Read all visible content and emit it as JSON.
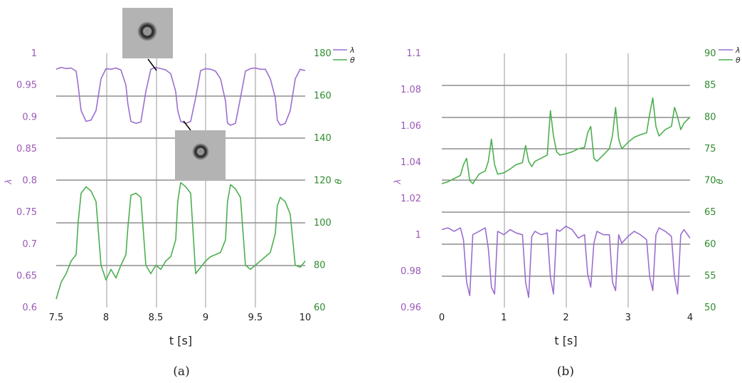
{
  "colors": {
    "lambda": "#9b6fcf",
    "theta": "#4caf50",
    "lambda_text": "#9b59b6",
    "theta_text": "#2e8b2e",
    "grid": "#555555"
  },
  "panels": [
    {
      "caption": "(a)",
      "xlabel": "t [s]",
      "ylabel_left": "λ",
      "ylabel_right": "θ",
      "legend": [
        "λ",
        "θ"
      ],
      "xticks": [
        "7.5",
        "8",
        "8.5",
        "9",
        "9.5",
        "10"
      ],
      "yticks_left": [
        "1",
        "0.95",
        "0.9",
        "0.85",
        "0.8",
        "0.75",
        "0.7",
        "0.65",
        "0.6"
      ],
      "yticks_right": [
        "180",
        "160",
        "140",
        "120",
        "100",
        "80",
        "60"
      ],
      "insets": [
        "droplet-image-large",
        "droplet-image-small"
      ]
    },
    {
      "caption": "(b)",
      "xlabel": "t [s]",
      "ylabel_left": "λ",
      "ylabel_right": "θ",
      "legend": [
        "λ",
        "θ"
      ],
      "xticks": [
        "0",
        "1",
        "2",
        "3",
        "4"
      ],
      "yticks_left": [
        "1.1",
        "1.08",
        "1.06",
        "1.04",
        "1.02",
        "1",
        "0.98",
        "0.96"
      ],
      "yticks_right": [
        "90",
        "85",
        "80",
        "75",
        "70",
        "65",
        "60",
        "55",
        "50"
      ]
    }
  ],
  "chart_data": [
    {
      "type": "line",
      "x_name": "t [s]",
      "xlim": [
        7.5,
        10
      ],
      "ylim_left": [
        0.6,
        1.0
      ],
      "ylim_right": [
        60,
        180
      ],
      "series": [
        {
          "name": "λ",
          "axis": "left",
          "x": [
            7.5,
            7.55,
            7.6,
            7.65,
            7.7,
            7.72,
            7.75,
            7.8,
            7.85,
            7.9,
            7.95,
            8.0,
            8.05,
            8.1,
            8.15,
            8.2,
            8.22,
            8.25,
            8.3,
            8.35,
            8.4,
            8.45,
            8.5,
            8.55,
            8.6,
            8.65,
            8.7,
            8.72,
            8.75,
            8.8,
            8.85,
            8.9,
            8.95,
            9.0,
            9.05,
            9.1,
            9.15,
            9.2,
            9.22,
            9.25,
            9.3,
            9.35,
            9.4,
            9.45,
            9.5,
            9.55,
            9.6,
            9.65,
            9.7,
            9.72,
            9.75,
            9.8,
            9.85,
            9.9,
            9.95,
            10.0
          ],
          "y": [
            0.975,
            0.978,
            0.976,
            0.977,
            0.972,
            0.95,
            0.91,
            0.893,
            0.895,
            0.91,
            0.96,
            0.976,
            0.975,
            0.977,
            0.974,
            0.95,
            0.92,
            0.893,
            0.89,
            0.892,
            0.94,
            0.975,
            0.978,
            0.976,
            0.974,
            0.968,
            0.94,
            0.91,
            0.893,
            0.89,
            0.893,
            0.93,
            0.973,
            0.976,
            0.975,
            0.972,
            0.96,
            0.925,
            0.89,
            0.887,
            0.89,
            0.93,
            0.972,
            0.976,
            0.977,
            0.975,
            0.975,
            0.96,
            0.93,
            0.895,
            0.887,
            0.89,
            0.91,
            0.96,
            0.975,
            0.973
          ]
        },
        {
          "name": "θ",
          "axis": "right",
          "x": [
            7.5,
            7.55,
            7.6,
            7.65,
            7.7,
            7.72,
            7.75,
            7.8,
            7.85,
            7.9,
            7.95,
            8.0,
            8.05,
            8.1,
            8.15,
            8.2,
            8.22,
            8.25,
            8.3,
            8.35,
            8.4,
            8.45,
            8.5,
            8.55,
            8.6,
            8.65,
            8.7,
            8.72,
            8.75,
            8.8,
            8.85,
            8.9,
            8.95,
            9.0,
            9.05,
            9.1,
            9.15,
            9.2,
            9.22,
            9.25,
            9.3,
            9.35,
            9.4,
            9.45,
            9.5,
            9.55,
            9.6,
            9.65,
            9.7,
            9.72,
            9.75,
            9.8,
            9.85,
            9.9,
            9.95,
            10.0
          ],
          "y": [
            64,
            72,
            76,
            82,
            85,
            100,
            114,
            117,
            115,
            110,
            80,
            73,
            78,
            74,
            80,
            85,
            98,
            113,
            114,
            112,
            80,
            76,
            80,
            78,
            82,
            84,
            92,
            110,
            119,
            117,
            114,
            76,
            79,
            82,
            84,
            85,
            86,
            92,
            110,
            118,
            116,
            112,
            80,
            78,
            80,
            82,
            84,
            86,
            95,
            108,
            112,
            110,
            104,
            80,
            79,
            82
          ]
        }
      ]
    },
    {
      "type": "line",
      "x_name": "t [s]",
      "xlim": [
        0,
        4
      ],
      "ylim_left": [
        0.95,
        1.1
      ],
      "ylim_right": [
        50,
        90
      ],
      "series": [
        {
          "name": "λ",
          "axis": "left",
          "x": [
            0,
            0.1,
            0.2,
            0.3,
            0.35,
            0.4,
            0.45,
            0.5,
            0.6,
            0.7,
            0.75,
            0.8,
            0.85,
            0.9,
            1.0,
            1.1,
            1.2,
            1.3,
            1.35,
            1.4,
            1.45,
            1.5,
            1.6,
            1.7,
            1.75,
            1.8,
            1.85,
            1.9,
            2.0,
            2.1,
            2.2,
            2.3,
            2.35,
            2.4,
            2.45,
            2.5,
            2.6,
            2.7,
            2.75,
            2.8,
            2.85,
            2.9,
            3.0,
            3.1,
            3.2,
            3.3,
            3.35,
            3.4,
            3.45,
            3.5,
            3.6,
            3.7,
            3.75,
            3.8,
            3.85,
            3.9,
            4.0
          ],
          "y": [
            0.996,
            0.997,
            0.995,
            0.997,
            0.99,
            0.965,
            0.957,
            0.993,
            0.995,
            0.997,
            0.985,
            0.962,
            0.958,
            0.995,
            0.993,
            0.996,
            0.994,
            0.993,
            0.965,
            0.956,
            0.992,
            0.995,
            0.993,
            0.994,
            0.968,
            0.958,
            0.996,
            0.995,
            0.998,
            0.996,
            0.991,
            0.993,
            0.97,
            0.962,
            0.988,
            0.995,
            0.993,
            0.993,
            0.965,
            0.96,
            0.993,
            0.988,
            0.992,
            0.995,
            0.993,
            0.99,
            0.968,
            0.96,
            0.993,
            0.997,
            0.995,
            0.992,
            0.968,
            0.958,
            0.993,
            0.996,
            0.991
          ]
        },
        {
          "name": "θ",
          "axis": "right",
          "x": [
            0,
            0.1,
            0.2,
            0.3,
            0.35,
            0.4,
            0.45,
            0.5,
            0.6,
            0.7,
            0.75,
            0.8,
            0.85,
            0.9,
            1.0,
            1.1,
            1.2,
            1.3,
            1.35,
            1.4,
            1.45,
            1.5,
            1.6,
            1.7,
            1.75,
            1.8,
            1.85,
            1.9,
            2.0,
            2.1,
            2.2,
            2.3,
            2.35,
            2.4,
            2.45,
            2.5,
            2.6,
            2.7,
            2.75,
            2.8,
            2.85,
            2.9,
            3.0,
            3.1,
            3.2,
            3.3,
            3.35,
            3.4,
            3.45,
            3.5,
            3.6,
            3.7,
            3.75,
            3.8,
            3.85,
            3.9,
            4.0
          ],
          "y": [
            69.5,
            69.8,
            70.3,
            70.8,
            72.5,
            73.5,
            70.0,
            69.5,
            71.0,
            71.5,
            73.0,
            76.5,
            72.5,
            71.0,
            71.2,
            71.8,
            72.5,
            72.8,
            75.5,
            73.0,
            72.2,
            73.0,
            73.5,
            74.0,
            81.0,
            77.0,
            74.5,
            74.0,
            74.2,
            74.5,
            75.0,
            75.2,
            77.5,
            78.5,
            73.5,
            73.0,
            74.0,
            75.0,
            77.0,
            81.5,
            76.5,
            75.0,
            76.0,
            76.8,
            77.2,
            77.5,
            80.5,
            83.0,
            78.5,
            77.0,
            78.0,
            78.5,
            81.5,
            80.0,
            78.0,
            79.0,
            80.0
          ]
        }
      ]
    }
  ]
}
